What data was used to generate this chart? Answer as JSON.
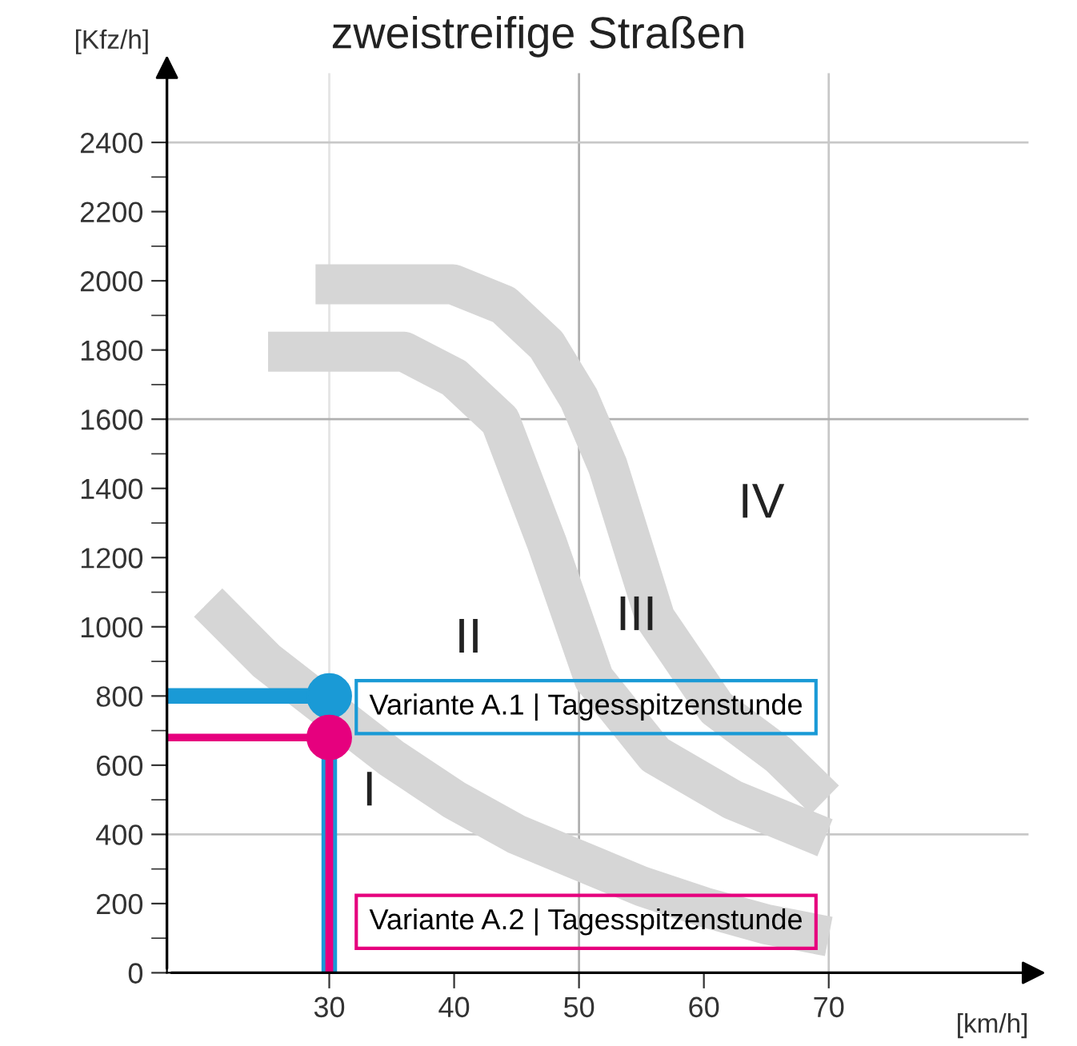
{
  "chart_data": {
    "type": "scatter",
    "title": "zweistreifige Straßen",
    "xlabel": "[km/h]",
    "ylabel": "[Kfz/h]",
    "xlim": [
      17,
      86
    ],
    "ylim": [
      0,
      2600
    ],
    "xticks": [
      30,
      40,
      50,
      60,
      70
    ],
    "yticks": [
      0,
      {
        "value": 100,
        "label": null
      },
      200,
      {
        "value": 300,
        "label": null
      },
      400,
      {
        "value": 500,
        "label": null
      },
      600,
      {
        "value": 700,
        "label": null
      },
      800,
      {
        "value": 900,
        "label": null
      },
      1000,
      {
        "value": 1100,
        "label": null
      },
      1200,
      {
        "value": 1300,
        "label": null
      },
      1400,
      {
        "value": 1500,
        "label": null
      },
      1600,
      {
        "value": 1700,
        "label": null
      },
      1800,
      {
        "value": 1900,
        "label": null
      },
      2000,
      {
        "value": 2100,
        "label": null
      },
      2200,
      {
        "value": 2300,
        "label": null
      },
      2400
    ],
    "grid": false,
    "legend": false,
    "marker": "circle",
    "ref_lines": [
      {
        "axis": "x",
        "value": 30,
        "color": "#e4e4e4"
      },
      {
        "axis": "x",
        "value": 50,
        "color": "#b0b0b0"
      },
      {
        "axis": "x",
        "value": 70,
        "color": "#c8c8c8"
      },
      {
        "axis": "y",
        "value": 400,
        "color": "#c8c8c8"
      },
      {
        "axis": "y",
        "value": 1600,
        "color": "#b0b0b0"
      },
      {
        "axis": "y",
        "value": 2400,
        "color": "#c8c8c8"
      }
    ],
    "series": [
      {
        "type": "line",
        "marker": "none",
        "color": "#d6d6d6",
        "x": [
          20.3,
          25,
          35,
          40,
          45,
          50,
          55,
          60,
          65,
          70
        ],
        "values": [
          1070,
          900,
          620,
          500,
          400,
          325,
          250,
          190,
          140,
          105
        ]
      },
      {
        "type": "line",
        "marker": "none",
        "color": "#d6d6d6",
        "x": [
          25.1,
          30,
          36,
          40,
          43.7,
          47.4,
          51.2,
          56.1,
          62.3,
          69.7
        ],
        "values": [
          1795,
          1795,
          1795,
          1720,
          1595,
          1245,
          850,
          630,
          500,
          390
        ]
      },
      {
        "type": "line",
        "marker": "none",
        "color": "#d6d6d6",
        "x": [
          28.9,
          35,
          39.9,
          44,
          47.4,
          50,
          52.3,
          56.1,
          61,
          66,
          69.7
        ],
        "values": [
          1990,
          1990,
          1990,
          1930,
          1815,
          1660,
          1465,
          1025,
          765,
          630,
          500
        ]
      },
      {
        "type": "line",
        "marker": "none",
        "color": "#1a9ad6",
        "x": [
          17,
          30,
          30
        ],
        "values": [
          800,
          800,
          0
        ]
      },
      {
        "type": "line",
        "marker": "none",
        "color": "#e6007e",
        "x": [
          17,
          30,
          30
        ],
        "values": [
          680,
          680,
          0
        ]
      },
      {
        "name": "Variante A.1 | Tagesspitzenstunde",
        "color": "#1a9ad6",
        "x": [
          30
        ],
        "values": [
          800
        ]
      },
      {
        "name": "Variante A.2 | Tagesspitzenstunde",
        "color": "#e6007e",
        "x": [
          30
        ],
        "values": [
          680
        ]
      }
    ],
    "annotations": [
      "I",
      "II",
      "III",
      "IV"
    ]
  }
}
